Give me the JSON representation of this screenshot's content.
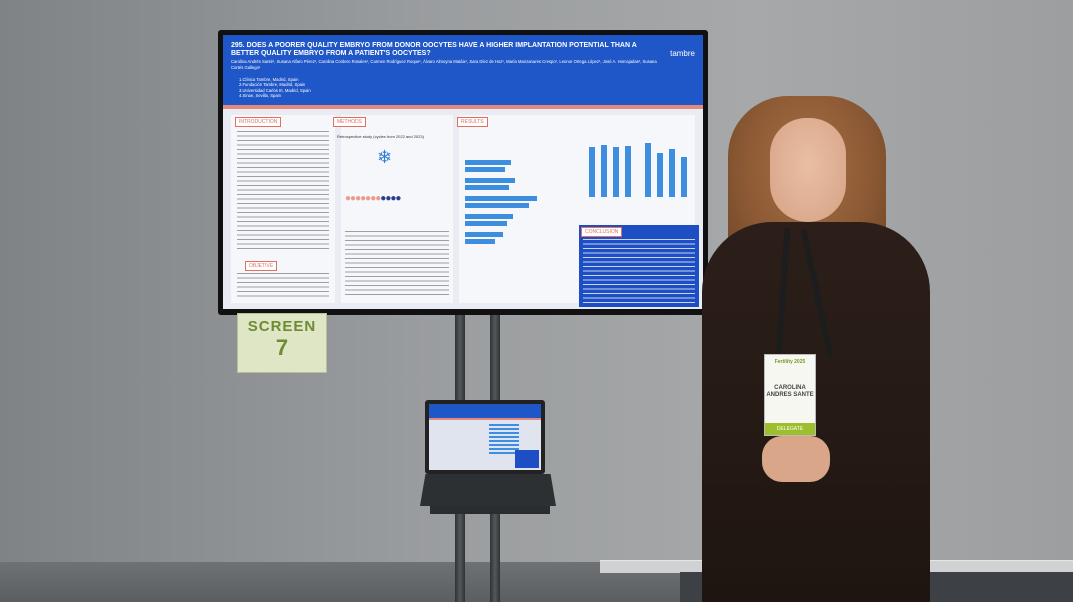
{
  "poster": {
    "title": "295. DOES A POORER QUALITY EMBRYO FROM DONOR OOCYTES HAVE A HIGHER IMPLANTATION POTENTIAL THAN A BETTER QUALITY EMBRYO FROM A PATIENT'S OOCYTES?",
    "authors": "Carolina Andrés Santé¹, Susana Alfaro Pérez¹, Carolina Cordero Rosales¹, Carmen Rodríguez Roque¹, Álvaro Almoyna Matáix¹, Sara Díez de Hoz¹, María Manzanares Crespo¹, Leonor Ortega López¹, José A. Horcajadas², Susana Cortés Gallego¹",
    "affiliations": [
      "1.Clínica Tambre, Madrid, Spain",
      "2.Fundación Tambre, Madrid, Spain",
      "3.Universidad Carlos III, Madrid, Spain",
      "4.Sinae, Sevilla, Spain"
    ],
    "logo": "tambre",
    "sections": {
      "introduction": "INTRODUCTION",
      "methods": "METHODS",
      "results": "RESULTS",
      "objective": "OBJETIVE",
      "conclusion": "CONCLUSION"
    },
    "methods_heading": "Retrospective study (cycles from 2022 and 2023)"
  },
  "sign": {
    "word": "SCREEN",
    "number": "7"
  },
  "badge": {
    "event": "Fertility 2025",
    "name": "CAROLINA ANDRES SANTE",
    "strip": "DELEGATE"
  }
}
